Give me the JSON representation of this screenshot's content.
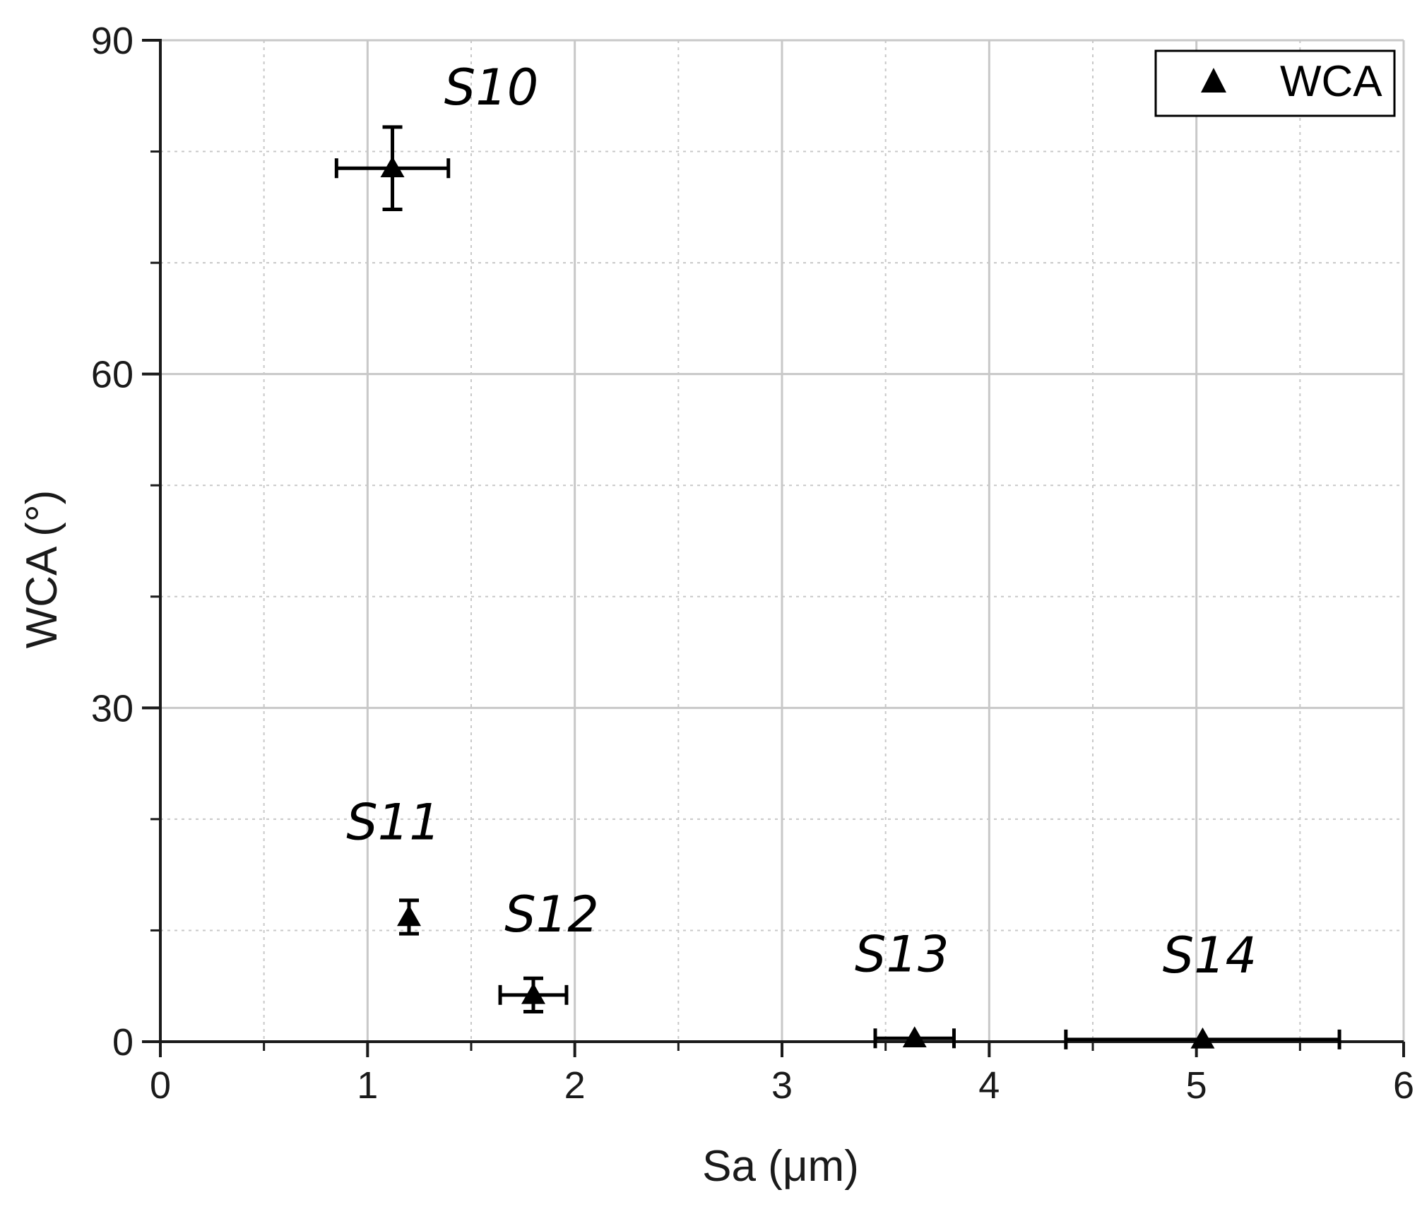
{
  "chart_data": {
    "type": "scatter",
    "xlabel": "Sa (μm)",
    "ylabel": "WCA (°)",
    "xlim": [
      0,
      6
    ],
    "ylim": [
      0,
      90
    ],
    "x_ticks": [
      "0",
      "1",
      "2",
      "3",
      "4",
      "5",
      "6"
    ],
    "y_ticks": [
      "0",
      "30",
      "60",
      "90"
    ],
    "grid": true,
    "legend": {
      "position": "top-right",
      "entries": [
        "WCA"
      ]
    },
    "series": [
      {
        "name": "WCA",
        "marker": "triangle",
        "points": [
          {
            "label": "S10",
            "x": 1.12,
            "y": 78.5,
            "x_err": 0.27,
            "y_err": 3.7
          },
          {
            "label": "S11",
            "x": 1.2,
            "y": 11.2,
            "x_err": 0.0,
            "y_err": 1.5
          },
          {
            "label": "S12",
            "x": 1.8,
            "y": 4.2,
            "x_err": 0.16,
            "y_err": 1.5
          },
          {
            "label": "S13",
            "x": 3.64,
            "y": 0.3,
            "x_err": 0.19,
            "y_err": 0.0
          },
          {
            "label": "S14",
            "x": 5.03,
            "y": 0.2,
            "x_err": 0.66,
            "y_err": 0.0
          }
        ]
      }
    ]
  },
  "colors": {
    "grid": "#c8c8c8",
    "axis": "#1a1a1a",
    "marker": "#000000"
  }
}
